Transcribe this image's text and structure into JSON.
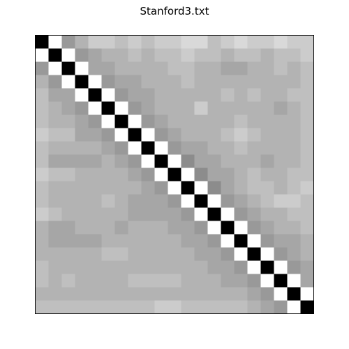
{
  "chart_data": {
    "type": "heatmap",
    "title": "Stanford3.txt",
    "xlabel": "",
    "ylabel": "",
    "colormap": "grayscale",
    "axes_visible": false,
    "rows": 21,
    "cols": 21,
    "matrix": [
      [
        1.0,
        0.0,
        0.4,
        0.3,
        0.2,
        0.2,
        0.25,
        0.2,
        0.25,
        0.2,
        0.2,
        0.15,
        0.15,
        0.25,
        0.2,
        0.15,
        0.2,
        0.2,
        0.15,
        0.2,
        0.2
      ],
      [
        0.0,
        1.0,
        0.0,
        0.4,
        0.35,
        0.3,
        0.3,
        0.25,
        0.3,
        0.25,
        0.25,
        0.2,
        0.25,
        0.25,
        0.3,
        0.25,
        0.25,
        0.3,
        0.25,
        0.25,
        0.2
      ],
      [
        0.4,
        0.0,
        1.0,
        0.0,
        0.35,
        0.35,
        0.3,
        0.3,
        0.3,
        0.3,
        0.25,
        0.25,
        0.3,
        0.3,
        0.35,
        0.35,
        0.3,
        0.3,
        0.25,
        0.3,
        0.25
      ],
      [
        0.3,
        0.4,
        0.0,
        1.0,
        0.0,
        0.4,
        0.35,
        0.35,
        0.3,
        0.3,
        0.3,
        0.25,
        0.3,
        0.3,
        0.3,
        0.3,
        0.3,
        0.3,
        0.3,
        0.3,
        0.25
      ],
      [
        0.25,
        0.35,
        0.35,
        0.0,
        1.0,
        0.0,
        0.4,
        0.35,
        0.35,
        0.3,
        0.3,
        0.3,
        0.3,
        0.3,
        0.25,
        0.3,
        0.25,
        0.3,
        0.3,
        0.25,
        0.25
      ],
      [
        0.25,
        0.3,
        0.35,
        0.4,
        0.0,
        1.0,
        0.0,
        0.4,
        0.35,
        0.3,
        0.3,
        0.3,
        0.2,
        0.3,
        0.3,
        0.3,
        0.3,
        0.3,
        0.35,
        0.3,
        0.25
      ],
      [
        0.25,
        0.3,
        0.3,
        0.35,
        0.4,
        0.0,
        1.0,
        0.0,
        0.4,
        0.35,
        0.3,
        0.3,
        0.3,
        0.3,
        0.3,
        0.25,
        0.3,
        0.3,
        0.3,
        0.3,
        0.25
      ],
      [
        0.2,
        0.25,
        0.25,
        0.35,
        0.35,
        0.4,
        0.0,
        1.0,
        0.0,
        0.4,
        0.35,
        0.3,
        0.3,
        0.3,
        0.25,
        0.2,
        0.25,
        0.3,
        0.3,
        0.3,
        0.25
      ],
      [
        0.25,
        0.3,
        0.3,
        0.3,
        0.3,
        0.35,
        0.4,
        0.0,
        1.0,
        0.0,
        0.4,
        0.35,
        0.35,
        0.3,
        0.3,
        0.25,
        0.3,
        0.3,
        0.3,
        0.3,
        0.25
      ],
      [
        0.25,
        0.35,
        0.35,
        0.35,
        0.35,
        0.3,
        0.35,
        0.4,
        0.0,
        1.0,
        0.0,
        0.45,
        0.35,
        0.35,
        0.3,
        0.3,
        0.3,
        0.35,
        0.3,
        0.3,
        0.25
      ],
      [
        0.2,
        0.25,
        0.25,
        0.3,
        0.3,
        0.3,
        0.3,
        0.35,
        0.4,
        0.0,
        1.0,
        0.0,
        0.45,
        0.35,
        0.35,
        0.3,
        0.25,
        0.3,
        0.3,
        0.25,
        0.25
      ],
      [
        0.25,
        0.3,
        0.3,
        0.3,
        0.3,
        0.3,
        0.3,
        0.3,
        0.35,
        0.4,
        0.0,
        1.0,
        0.0,
        0.45,
        0.35,
        0.3,
        0.25,
        0.25,
        0.3,
        0.25,
        0.2
      ],
      [
        0.25,
        0.3,
        0.3,
        0.3,
        0.3,
        0.25,
        0.3,
        0.35,
        0.35,
        0.35,
        0.4,
        0.0,
        1.0,
        0.0,
        0.4,
        0.35,
        0.3,
        0.25,
        0.2,
        0.2,
        0.25
      ],
      [
        0.2,
        0.25,
        0.3,
        0.3,
        0.3,
        0.3,
        0.3,
        0.35,
        0.35,
        0.35,
        0.35,
        0.4,
        0.0,
        1.0,
        0.0,
        0.4,
        0.35,
        0.3,
        0.3,
        0.25,
        0.25
      ],
      [
        0.3,
        0.35,
        0.35,
        0.3,
        0.3,
        0.3,
        0.35,
        0.3,
        0.3,
        0.3,
        0.35,
        0.35,
        0.4,
        0.0,
        1.0,
        0.0,
        0.4,
        0.35,
        0.3,
        0.3,
        0.25
      ],
      [
        0.3,
        0.35,
        0.35,
        0.35,
        0.35,
        0.3,
        0.3,
        0.3,
        0.3,
        0.3,
        0.3,
        0.35,
        0.35,
        0.4,
        0.0,
        1.0,
        0.0,
        0.4,
        0.35,
        0.35,
        0.3
      ],
      [
        0.3,
        0.3,
        0.3,
        0.3,
        0.3,
        0.25,
        0.25,
        0.3,
        0.3,
        0.3,
        0.3,
        0.3,
        0.35,
        0.35,
        0.4,
        0.0,
        1.0,
        0.0,
        0.4,
        0.35,
        0.3
      ],
      [
        0.25,
        0.3,
        0.3,
        0.3,
        0.3,
        0.3,
        0.3,
        0.3,
        0.3,
        0.3,
        0.3,
        0.3,
        0.3,
        0.35,
        0.35,
        0.4,
        0.0,
        1.0,
        0.0,
        0.4,
        0.35
      ],
      [
        0.25,
        0.3,
        0.25,
        0.3,
        0.3,
        0.3,
        0.3,
        0.25,
        0.25,
        0.25,
        0.25,
        0.3,
        0.3,
        0.3,
        0.35,
        0.35,
        0.4,
        0.0,
        1.0,
        0.0,
        0.35
      ],
      [
        0.3,
        0.3,
        0.3,
        0.3,
        0.3,
        0.3,
        0.3,
        0.3,
        0.3,
        0.3,
        0.3,
        0.3,
        0.3,
        0.3,
        0.3,
        0.3,
        0.35,
        0.4,
        0.0,
        1.0,
        0.0
      ],
      [
        0.25,
        0.25,
        0.25,
        0.25,
        0.25,
        0.25,
        0.25,
        0.25,
        0.25,
        0.2,
        0.2,
        0.25,
        0.25,
        0.25,
        0.25,
        0.25,
        0.3,
        0.35,
        0.4,
        0.0,
        1.0
      ]
    ]
  }
}
